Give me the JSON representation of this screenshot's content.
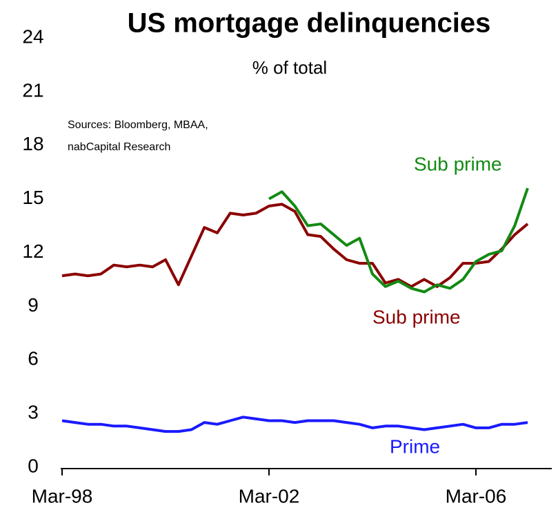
{
  "chart_data": {
    "type": "line",
    "title": "US mortgage delinquencies",
    "subtitle": "% of total",
    "annotations": [
      "Sources: Bloomberg, MBAA,",
      "nabCapital Research"
    ],
    "categories": [
      "Mar-98",
      null,
      null,
      null,
      null,
      null,
      null,
      null,
      null,
      null,
      null,
      null,
      null,
      null,
      null,
      null,
      "Mar-02",
      null,
      null,
      null,
      null,
      null,
      null,
      null,
      null,
      null,
      null,
      null,
      null,
      null,
      null,
      null,
      "Mar-06",
      null,
      null,
      null,
      null
    ],
    "series": [
      {
        "name": "Sub prime",
        "color": "#8b0000",
        "values": [
          10.7,
          10.8,
          10.7,
          10.8,
          11.3,
          11.2,
          11.3,
          11.2,
          11.6,
          10.2,
          11.8,
          13.4,
          13.1,
          14.2,
          14.1,
          14.2,
          14.6,
          14.7,
          14.3,
          13.0,
          12.9,
          12.2,
          11.6,
          11.4,
          11.4,
          10.3,
          10.5,
          10.1,
          10.5,
          10.1,
          10.6,
          11.4,
          11.4,
          11.5,
          12.2,
          13.0,
          13.6
        ]
      },
      {
        "name": "Sub prime",
        "color": "#138a13",
        "values": [
          null,
          null,
          null,
          null,
          null,
          null,
          null,
          null,
          null,
          null,
          null,
          null,
          null,
          null,
          null,
          null,
          15.0,
          15.4,
          14.6,
          13.5,
          13.6,
          13.0,
          12.4,
          12.8,
          10.8,
          10.1,
          10.4,
          10.0,
          9.8,
          10.2,
          10.0,
          10.5,
          11.5,
          11.9,
          12.1,
          13.5,
          15.6
        ]
      },
      {
        "name": "Prime",
        "color": "#1a1aff",
        "values": [
          2.6,
          2.5,
          2.4,
          2.4,
          2.3,
          2.3,
          2.2,
          2.1,
          2.0,
          2.0,
          2.1,
          2.5,
          2.4,
          2.6,
          2.8,
          2.7,
          2.6,
          2.6,
          2.5,
          2.6,
          2.6,
          2.6,
          2.5,
          2.4,
          2.2,
          2.3,
          2.3,
          2.2,
          2.1,
          2.2,
          2.3,
          2.4,
          2.2,
          2.2,
          2.4,
          2.4,
          2.5
        ]
      }
    ],
    "ylim": [
      0,
      24
    ],
    "yticks": [
      0,
      3,
      6,
      9,
      12,
      15,
      18,
      21,
      24
    ],
    "grid": false
  }
}
